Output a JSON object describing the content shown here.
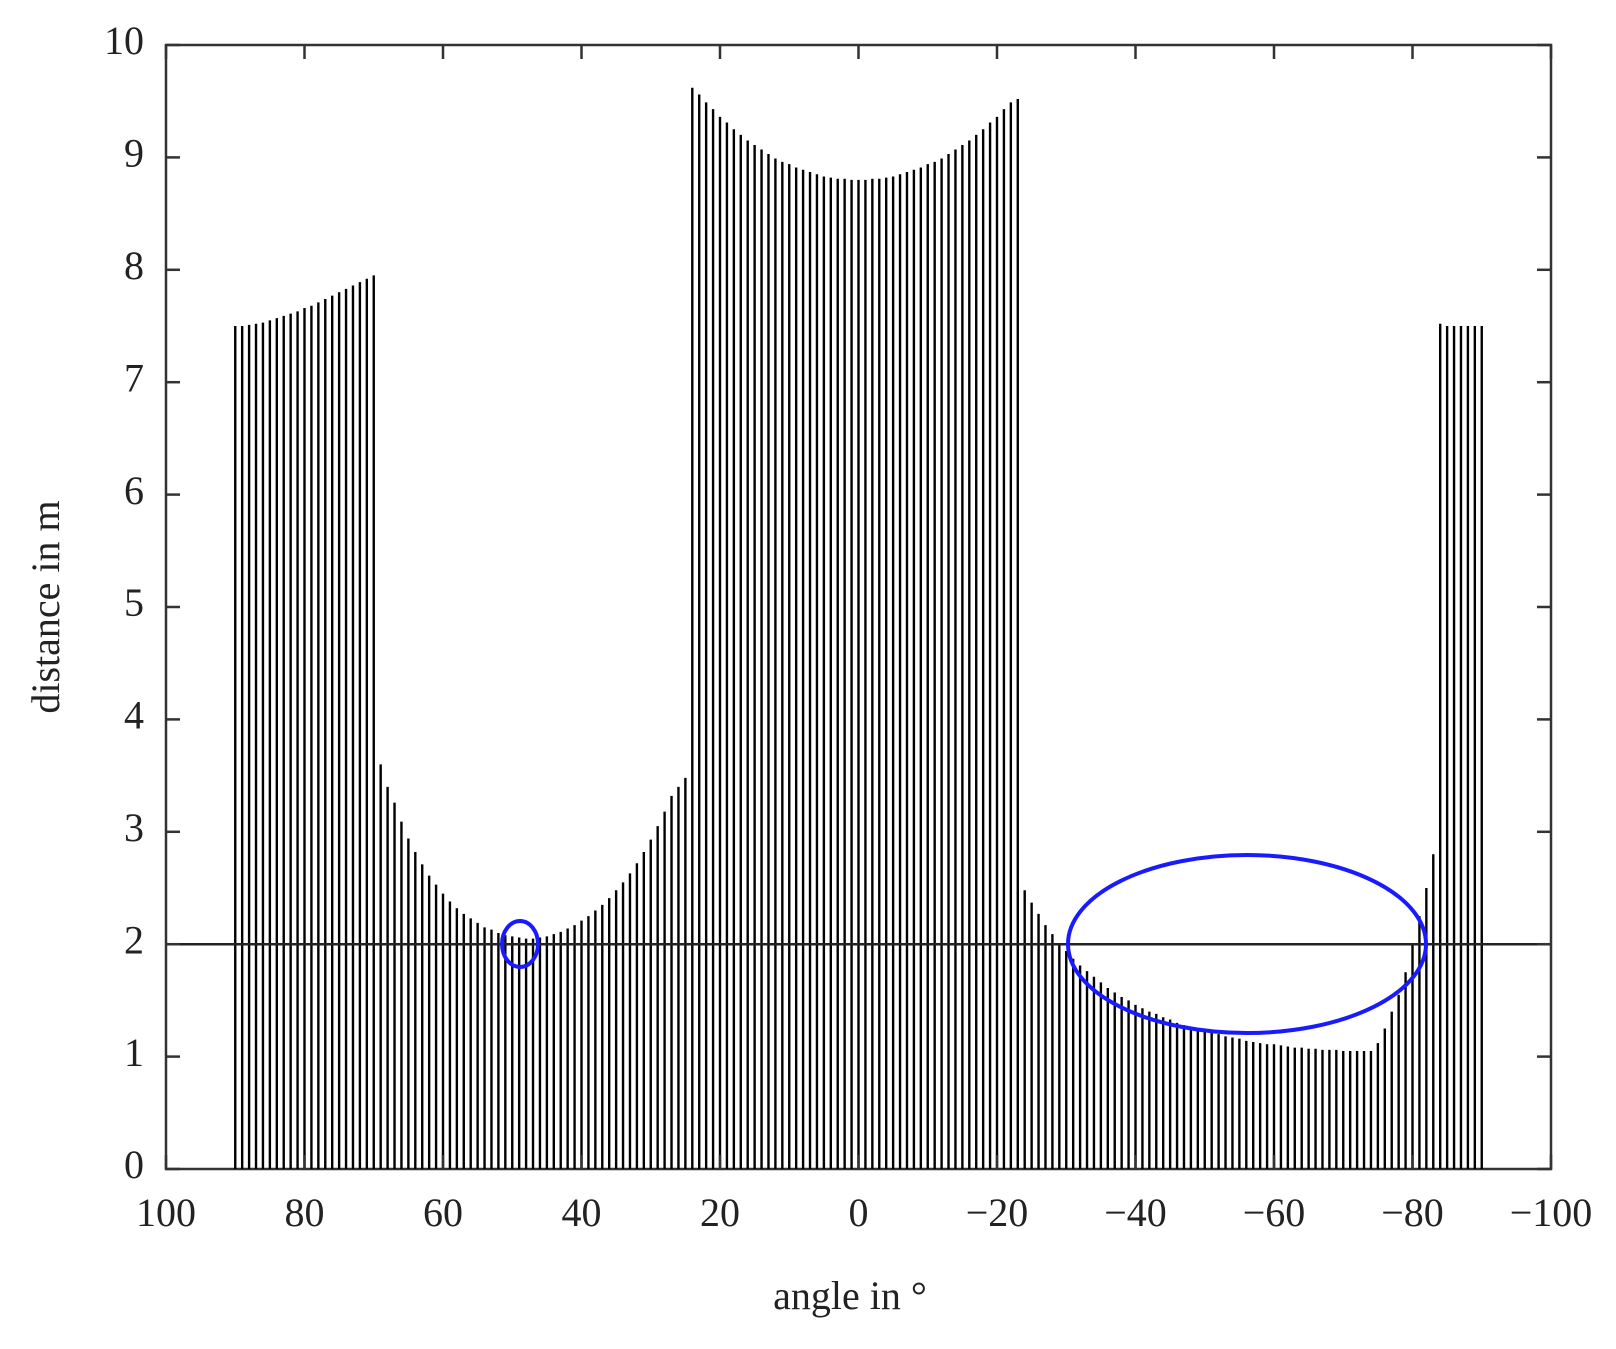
{
  "chart_data": {
    "type": "stem",
    "x_label": "angle in °",
    "y_label": "distance in m",
    "xlim": [
      100,
      -100
    ],
    "ylim": [
      0,
      10
    ],
    "xticks": [
      100,
      80,
      60,
      40,
      20,
      0,
      {
        "value": -20,
        "label": "−20"
      },
      {
        "value": -40,
        "label": "−40"
      },
      {
        "value": -60,
        "label": "−60"
      },
      {
        "value": -80,
        "label": "−80"
      },
      {
        "value": -100,
        "label": "−100"
      }
    ],
    "yticks": [
      0,
      1,
      2,
      3,
      4,
      5,
      6,
      7,
      8,
      9,
      10
    ],
    "reference_line": 2,
    "color": "#000000",
    "x": [
      90,
      89,
      88,
      87,
      86,
      85,
      84,
      83,
      82,
      81,
      80,
      79,
      78,
      77,
      76,
      75,
      74,
      73,
      72,
      71,
      70,
      69,
      68,
      67,
      66,
      65,
      64,
      63,
      62,
      61,
      60,
      59,
      58,
      57,
      56,
      55,
      54,
      53,
      52,
      51,
      50,
      49,
      48,
      47,
      46,
      45,
      44,
      43,
      42,
      41,
      40,
      39,
      38,
      37,
      36,
      35,
      34,
      33,
      32,
      31,
      30,
      29,
      28,
      27,
      26,
      25,
      24,
      23,
      22,
      21,
      20,
      19,
      18,
      17,
      16,
      15,
      14,
      13,
      12,
      11,
      10,
      9,
      8,
      7,
      6,
      5,
      4,
      3,
      2,
      1,
      0,
      -1,
      -2,
      -3,
      -4,
      -5,
      -6,
      -7,
      -8,
      -9,
      -10,
      -11,
      -12,
      -13,
      -14,
      -15,
      -16,
      -17,
      -18,
      -19,
      -20,
      -21,
      -22,
      -23,
      -24,
      -25,
      -26,
      -27,
      -28,
      -29,
      -30,
      -31,
      -32,
      -33,
      -34,
      -35,
      -36,
      -37,
      -38,
      -39,
      -40,
      -41,
      -42,
      -43,
      -44,
      -45,
      -46,
      -47,
      -48,
      -49,
      -50,
      -51,
      -52,
      -53,
      -54,
      -55,
      -56,
      -57,
      -58,
      -59,
      -60,
      -61,
      -62,
      -63,
      -64,
      -65,
      -66,
      -67,
      -68,
      -69,
      -70,
      -71,
      -72,
      -73,
      -74,
      -75,
      -76,
      -77,
      -78,
      -79,
      -80,
      -81,
      -82,
      -83,
      -84,
      -85,
      -86,
      -87,
      -88,
      -89,
      -90
    ],
    "values": [
      7.5,
      7.5,
      7.51,
      7.52,
      7.53,
      7.55,
      7.57,
      7.59,
      7.61,
      7.63,
      7.66,
      7.68,
      7.71,
      7.74,
      7.77,
      7.8,
      7.83,
      7.86,
      7.89,
      7.92,
      7.95,
      3.6,
      3.4,
      3.26,
      3.09,
      2.94,
      2.82,
      2.71,
      2.61,
      2.53,
      2.45,
      2.38,
      2.32,
      2.27,
      2.23,
      2.19,
      2.15,
      2.13,
      2.1,
      2.08,
      2.07,
      2.06,
      2.05,
      2.05,
      2.06,
      2.07,
      2.09,
      2.11,
      2.14,
      2.17,
      2.21,
      2.25,
      2.3,
      2.35,
      2.41,
      2.48,
      2.55,
      2.63,
      2.72,
      2.82,
      2.93,
      3.05,
      3.18,
      3.32,
      3.4,
      3.48,
      9.62,
      9.56,
      9.49,
      9.43,
      9.36,
      9.31,
      9.25,
      9.2,
      9.15,
      9.11,
      9.07,
      9.03,
      8.99,
      8.96,
      8.94,
      8.91,
      8.89,
      8.87,
      8.85,
      8.83,
      8.82,
      8.81,
      8.81,
      8.8,
      8.8,
      8.8,
      8.81,
      8.81,
      8.82,
      8.83,
      8.85,
      8.87,
      8.89,
      8.91,
      8.94,
      8.96,
      8.99,
      9.03,
      9.07,
      9.11,
      9.15,
      9.2,
      9.25,
      9.31,
      9.36,
      9.43,
      9.49,
      9.52,
      2.48,
      2.37,
      2.27,
      2.17,
      2.09,
      2.01,
      1.94,
      1.87,
      1.81,
      1.76,
      1.71,
      1.66,
      1.61,
      1.57,
      1.53,
      1.5,
      1.46,
      1.43,
      1.4,
      1.38,
      1.35,
      1.33,
      1.3,
      1.28,
      1.26,
      1.24,
      1.23,
      1.21,
      1.2,
      1.18,
      1.17,
      1.16,
      1.14,
      1.13,
      1.12,
      1.11,
      1.11,
      1.1,
      1.09,
      1.08,
      1.08,
      1.07,
      1.07,
      1.06,
      1.06,
      1.06,
      1.05,
      1.05,
      1.05,
      1.05,
      1.05,
      1.12,
      1.25,
      1.4,
      1.55,
      1.75,
      2.0,
      2.25,
      2.5,
      2.8,
      7.52,
      7.5,
      7.5,
      7.5,
      7.5,
      7.5,
      7.5
    ]
  }
}
